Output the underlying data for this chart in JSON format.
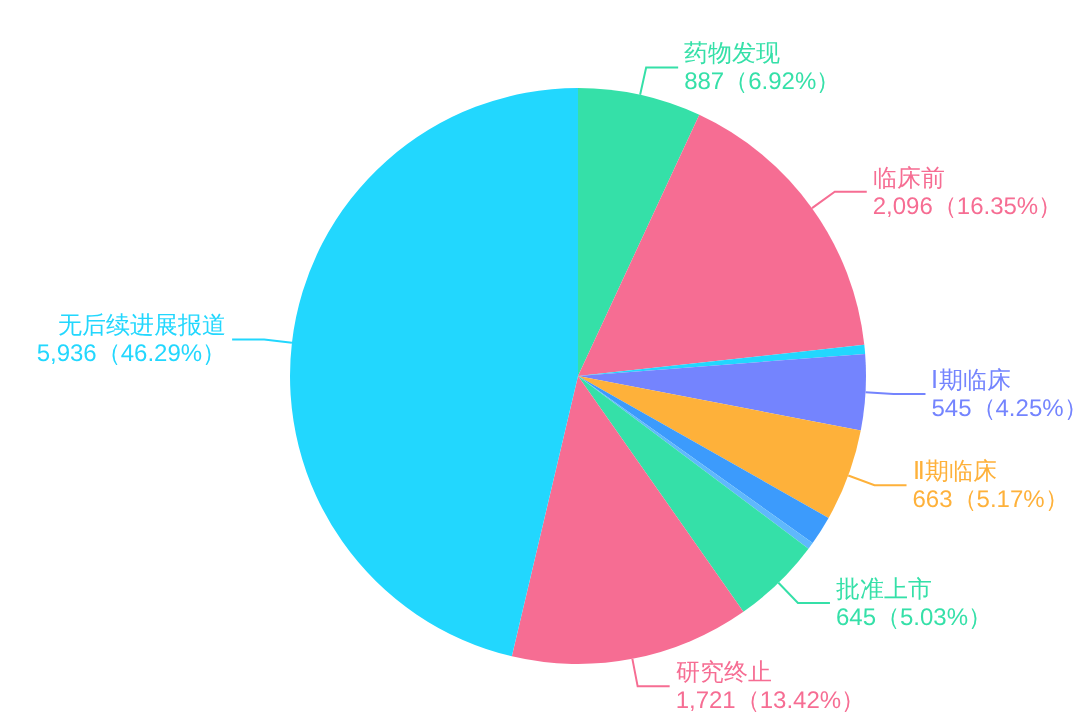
{
  "chart_data": {
    "type": "pie",
    "categories": [
      "药物发现",
      "临床前",
      null,
      "Ⅰ期临床",
      "Ⅱ期临床",
      null,
      null,
      "批准上市",
      "研究终止",
      "无后续进展报道"
    ],
    "values": [
      887,
      2096,
      65,
      545,
      663,
      210,
      50,
      645,
      1721,
      5936
    ],
    "colors": [
      "#35e0a8",
      "#f66d93",
      "#22d7fe",
      "#7484fe",
      "#feb13a",
      "#3c9bfc",
      "#5fb8fc",
      "#35e0a8",
      "#f66d93",
      "#22d7fe"
    ],
    "value_labels": [
      "887（6.92%）",
      "2,096（16.35%）",
      null,
      "545（4.25%）",
      "663（5.17%）",
      null,
      null,
      "645（5.03%）",
      "1,721（13.42%）",
      "5,936（46.29%）"
    ]
  }
}
